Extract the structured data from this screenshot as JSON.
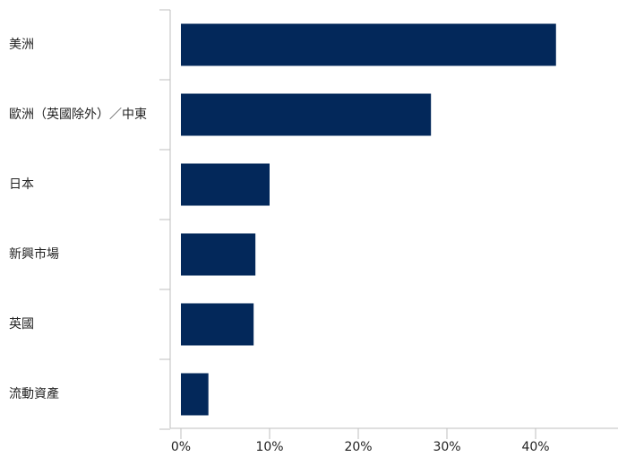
{
  "chart_data": {
    "type": "bar",
    "orientation": "horizontal",
    "categories": [
      "美洲",
      "歐洲（英國除外）／中東",
      "日本",
      "新興市場",
      "英國",
      "流動資產"
    ],
    "values": [
      42.3,
      28.2,
      10.0,
      8.4,
      8.2,
      3.1
    ],
    "xlim": [
      0,
      50
    ],
    "x_ticks": [
      0,
      10,
      20,
      30,
      40
    ],
    "x_tick_labels": [
      "0%",
      "10%",
      "20%",
      "30%",
      "40%"
    ],
    "title": "",
    "xlabel": "",
    "ylabel": "",
    "grid": false,
    "legend": "none",
    "bar_color": "#03285a",
    "axis_color": "#bfbfbf"
  }
}
